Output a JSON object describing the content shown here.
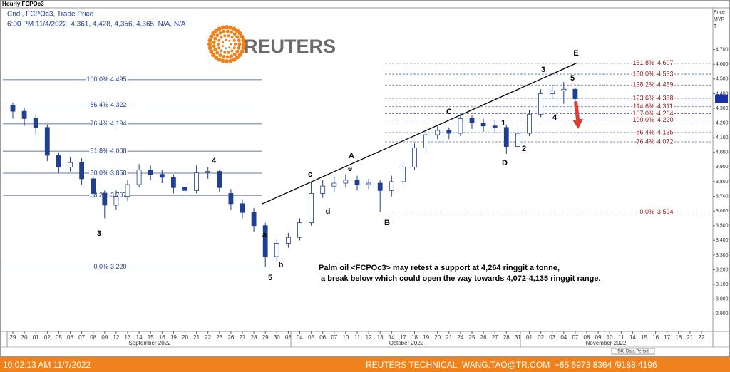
{
  "chart_data": {
    "type": "candlestick",
    "title": "Hourly FCPOc3",
    "subtitle": "Cndl, FCPOc3, Trade Price",
    "info": "6:00 PM 11/4/2022, 4,361, 4,428, 4,356, 4,365, N/A, N/A",
    "brand": "REUTERS",
    "y_label": [
      "Price",
      "MYR",
      "T"
    ],
    "color": "#1f3f8f",
    "categories": [
      "29",
      "30",
      "01",
      "02",
      "05",
      "06",
      "07",
      "08",
      "09",
      "12",
      "13",
      "14",
      "15",
      "16",
      "19",
      "20",
      "21",
      "22",
      "23",
      "26",
      "27",
      "28",
      "29",
      "30",
      "03",
      "04",
      "05",
      "06",
      "07",
      "10",
      "11",
      "12",
      "13",
      "14",
      "17",
      "18",
      "19",
      "20",
      "21",
      "24",
      "25",
      "26",
      "27",
      "28",
      "31",
      "01",
      "02",
      "03",
      "04",
      "07",
      "08",
      "09",
      "10",
      "11",
      "14",
      "15",
      "16",
      "17",
      "18",
      "21",
      "22"
    ],
    "months": [
      "September 2022",
      "October 2022",
      "November 2022"
    ],
    "period_note": "548 Data Period",
    "open": [
      4320,
      4280,
      4230,
      4170,
      3980,
      3900,
      3930,
      3820,
      3720,
      3640,
      3700,
      3780,
      3880,
      3850,
      3830,
      3760,
      3740,
      3860,
      3870,
      3720,
      3650,
      3590,
      3500,
      3290,
      3380,
      3420,
      3520,
      3720,
      3770,
      3790,
      3810,
      3780,
      3790,
      3740,
      3800,
      3900,
      4030,
      4120,
      4150,
      4130,
      4230,
      4200,
      4180,
      4170,
      4040,
      4130,
      4260,
      4400,
      4420,
      4430,
      null,
      null,
      null,
      null,
      null,
      null,
      null,
      null,
      null,
      null,
      null
    ],
    "high": [
      4340,
      4300,
      4250,
      4190,
      4000,
      3970,
      3960,
      3840,
      3740,
      3740,
      3810,
      3920,
      3910,
      3880,
      3850,
      3790,
      3910,
      3900,
      3880,
      3750,
      3680,
      3620,
      3520,
      3410,
      3450,
      3550,
      3800,
      3810,
      3830,
      3850,
      3840,
      3820,
      3810,
      3840,
      3930,
      4060,
      4150,
      4180,
      4170,
      4260,
      4250,
      4230,
      4220,
      4190,
      4160,
      4290,
      4430,
      4460,
      4480,
      4440,
      null,
      null,
      null,
      null,
      null,
      null,
      null,
      null,
      null,
      null,
      null
    ],
    "low": [
      4230,
      4180,
      4120,
      3940,
      3860,
      3870,
      3780,
      3690,
      3550,
      3610,
      3670,
      3760,
      3810,
      3790,
      3720,
      3690,
      3720,
      3820,
      3730,
      3610,
      3550,
      3460,
      3220,
      3260,
      3350,
      3400,
      3500,
      3690,
      3730,
      3760,
      3740,
      3750,
      3594,
      3700,
      3780,
      3880,
      4000,
      4090,
      4090,
      4110,
      4160,
      4140,
      4130,
      3990,
      4010,
      4110,
      4240,
      4370,
      4330,
      4340,
      null,
      null,
      null,
      null,
      null,
      null,
      null,
      null,
      null,
      null,
      null
    ],
    "close": [
      4280,
      4230,
      4170,
      3980,
      3900,
      3930,
      3820,
      3720,
      3640,
      3700,
      3780,
      3880,
      3850,
      3830,
      3760,
      3740,
      3860,
      3870,
      3760,
      3650,
      3590,
      3500,
      3290,
      3380,
      3420,
      3520,
      3720,
      3770,
      3790,
      3810,
      3780,
      3790,
      3740,
      3800,
      3900,
      4030,
      4120,
      4150,
      4130,
      4230,
      4200,
      4180,
      4170,
      4040,
      4130,
      4260,
      4400,
      4420,
      4430,
      4365,
      null,
      null,
      null,
      null,
      null,
      null,
      null,
      null,
      null,
      null,
      null
    ],
    "ylim": [
      2780,
      4980
    ],
    "yticks": [
      {
        "value": 2900,
        "label": "2,900"
      },
      {
        "value": 3000,
        "label": "3,000"
      },
      {
        "value": 3100,
        "label": "3,100"
      },
      {
        "value": 3200,
        "label": "3,200"
      },
      {
        "value": 3300,
        "label": "3,300"
      },
      {
        "value": 3400,
        "label": "3,400"
      },
      {
        "value": 3500,
        "label": "3,500"
      },
      {
        "value": 3600,
        "label": "3,600"
      },
      {
        "value": 3700,
        "label": "3,700"
      },
      {
        "value": 3800,
        "label": "3,800"
      },
      {
        "value": 3900,
        "label": "3,900"
      },
      {
        "value": 4000,
        "label": "4,000"
      },
      {
        "value": 4100,
        "label": "4,100"
      },
      {
        "value": 4200,
        "label": "4,200"
      },
      {
        "value": 4300,
        "label": "4,300"
      },
      {
        "value": 4400,
        "label": "4,400"
      },
      {
        "value": 4500,
        "label": "4,500"
      },
      {
        "value": 4600,
        "label": "4,600"
      },
      {
        "value": 4700,
        "label": "4,700"
      }
    ],
    "fib_left": [
      {
        "ratio": "100.0%",
        "price": {
          "value": 4495,
          "label": "4,495"
        }
      },
      {
        "ratio": "86.4%",
        "price": {
          "value": 4322,
          "label": "4,322"
        }
      },
      {
        "ratio": "76.4%",
        "price": {
          "value": 4194,
          "label": "4,194"
        }
      },
      {
        "ratio": "61.8%",
        "price": {
          "value": 4008,
          "label": "4,008"
        }
      },
      {
        "ratio": "50.0%",
        "price": {
          "value": 3858,
          "label": "3,858"
        }
      },
      {
        "ratio": "38.2%",
        "price": {
          "value": 3707,
          "label": "3,707"
        }
      },
      {
        "ratio": "0.0%",
        "price": {
          "value": 3220,
          "label": "3,220"
        }
      }
    ],
    "fib_right": [
      {
        "ratio": "161.8%",
        "price": {
          "value": 4607,
          "label": "4,607"
        }
      },
      {
        "ratio": "150.0%",
        "price": {
          "value": 4533,
          "label": "4,533"
        }
      },
      {
        "ratio": "138.2%",
        "price": {
          "value": 4459,
          "label": "4,459"
        }
      },
      {
        "ratio": "123.6%",
        "price": {
          "value": 4368,
          "label": "4,368"
        }
      },
      {
        "ratio": "114.6%",
        "price": {
          "value": 4311,
          "label": "4,311"
        }
      },
      {
        "ratio": "107.0%",
        "price": {
          "value": 4264,
          "label": "4,264"
        }
      },
      {
        "ratio": "100.0%",
        "price": {
          "value": 4220,
          "label": "4,220"
        }
      },
      {
        "ratio": "86.4%",
        "price": {
          "value": 4135,
          "label": "4,135"
        }
      },
      {
        "ratio": "76.4%",
        "price": {
          "value": 4072,
          "label": "4,072"
        }
      },
      {
        "ratio": "0.0%",
        "price": {
          "value": 3594,
          "label": "3,594"
        }
      }
    ],
    "wave_labels": [
      "3",
      "4",
      "5",
      "a",
      "b",
      "c",
      "d",
      "e",
      "A",
      "B",
      "C",
      "D",
      "E",
      "1",
      "2",
      "3",
      "4",
      "5"
    ],
    "annotation": [
      "Palm oil <FCPOc3> may retest a support at 4,264 ringgit a tonne,",
      " a break below which could open the way towards 4,072-4,135 ringgit range."
    ],
    "footer_time": "10:02:13 AM 11/7/2022",
    "footer_contact": "REUTERS TECHNICAL  WANG.TAO@TR.COM  +65 6973 8364 /9188 4196"
  }
}
